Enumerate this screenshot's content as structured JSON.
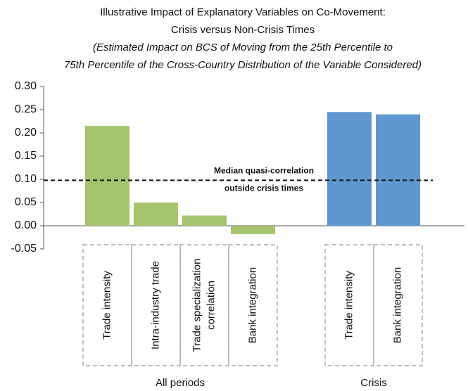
{
  "chart_data": {
    "type": "bar",
    "title": [
      "Illustrative Impact of Explanatory Variables on Co-Movement:",
      "Crisis versus Non-Crisis Times"
    ],
    "subtitle": [
      "(Estimated Impact on BCS of Moving from the 25th Percentile to",
      "75th Percentile of the Cross-Country Distribution of the Variable Considered)"
    ],
    "series": [
      {
        "name": "All periods",
        "color": "#a5c46b",
        "categories": [
          "Trade intensity",
          "Intra-industry trade",
          "Trade specialization correlation",
          "Bank integration"
        ],
        "values": [
          0.215,
          0.05,
          0.022,
          -0.018
        ]
      },
      {
        "name": "Crisis",
        "color": "#5f98d1",
        "categories": [
          "Trade intensity",
          "Bank integration"
        ],
        "values": [
          0.245,
          0.24
        ]
      }
    ],
    "reference_line": {
      "value": 0.098,
      "label": [
        "Median quasi-correlation",
        "outside crisis times"
      ]
    },
    "ylim": [
      -0.05,
      0.3
    ],
    "yticks": [
      {
        "value": -0.05,
        "label": "-0.05"
      },
      {
        "value": 0,
        "label": "0.00"
      },
      {
        "value": 0.05,
        "label": "0.05"
      },
      {
        "value": 0.1,
        "label": "0.10"
      },
      {
        "value": 0.15,
        "label": "0.15"
      },
      {
        "value": 0.2,
        "label": "0.20"
      },
      {
        "value": 0.25,
        "label": "0.25"
      },
      {
        "value": 0.3,
        "label": "0.30"
      }
    ]
  }
}
